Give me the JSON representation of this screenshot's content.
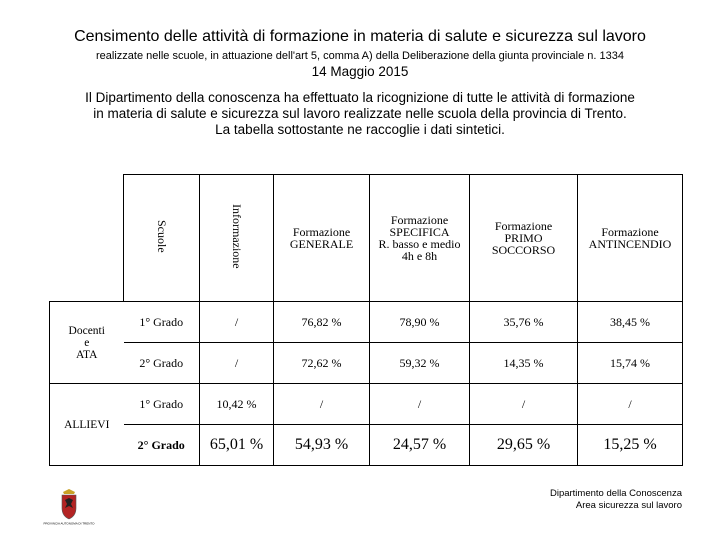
{
  "title": "Censimento delle attività di formazione in materia di salute e sicurezza sul lavoro",
  "subtitle": "realizzate nelle scuole, in attuazione dell'art 5, comma A) della Deliberazione della giunta provinciale n. 1334",
  "date": "14 Maggio 2015",
  "intro": [
    "Il Dipartimento della conoscenza ha effettuato la ricognizione di tutte le attività di formazione",
    "in materia di salute e sicurezza sul lavoro realizzate nelle scuola della provincia di Trento.",
    "La tabella sottostante ne raccoglie i dati sintetici."
  ],
  "table": {
    "headers": {
      "scuole": "Scuole",
      "informazione": "Informazione",
      "generale": [
        "Formazione",
        "GENERALE"
      ],
      "specifica": [
        "Formazione",
        "SPECIFICA",
        "R. basso e medio",
        "4h e 8h"
      ],
      "primo_soccorso": [
        "Formazione",
        "PRIMO",
        "SOCCORSO"
      ],
      "antincendio": [
        "Formazione",
        "ANTINCENDIO"
      ]
    },
    "groups": {
      "docenti": [
        "Docenti",
        "e",
        "ATA"
      ],
      "allievi": "ALLIEVI"
    },
    "rows": [
      {
        "grado": "1° Grado",
        "informazione": "/",
        "generale": "76,82 %",
        "specifica": "78,90 %",
        "primo_soccorso": "35,76 %",
        "antincendio": "38,45 %"
      },
      {
        "grado": "2° Grado",
        "informazione": "/",
        "generale": "72,62 %",
        "specifica": "59,32 %",
        "primo_soccorso": "14,35 %",
        "antincendio": "15,74 %"
      },
      {
        "grado": "1° Grado",
        "informazione": "10,42 %",
        "generale": "/",
        "specifica": "/",
        "primo_soccorso": "/",
        "antincendio": "/"
      },
      {
        "grado": "2° Grado",
        "informazione": "65,01 %",
        "generale": "54,93 %",
        "specifica": "24,57 %",
        "primo_soccorso": "29,65 %",
        "antincendio": "15,25 %"
      }
    ]
  },
  "footer": {
    "line1": "Dipartimento della Conoscenza",
    "line2": "Area sicurezza sul lavoro",
    "logo_text": "PROVINCIA AUTONOMA DI TRENTO"
  },
  "colors": {
    "logo_red": "#b32424",
    "logo_gold": "#c9a227"
  }
}
